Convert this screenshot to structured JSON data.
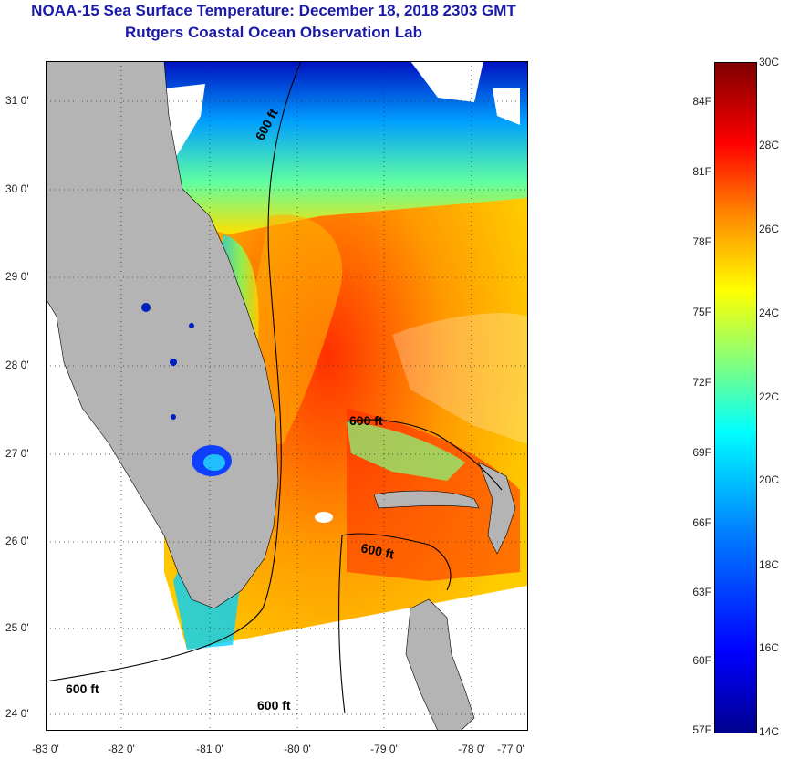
{
  "header": {
    "title": "NOAA-15 Sea Surface Temperature:  December 18, 2018 2303 GMT",
    "subtitle": "Rutgers Coastal Ocean Observation Lab"
  },
  "map": {
    "lat_labels": [
      "31 0'",
      "30 0'",
      "29 0'",
      "28 0'",
      "27 0'",
      "26 0'",
      "25 0'",
      "24 0'"
    ],
    "lon_labels": [
      "-83 0'",
      "-82 0'",
      "-81 0'",
      "-80 0'",
      "-79 0'",
      "-78 0'",
      "-77 0'"
    ],
    "isobath_labels": [
      "600 ft",
      "600 ft",
      "600 ft",
      "600 ft",
      "600 ft"
    ]
  },
  "colorbar": {
    "fahrenheit": [
      "84F",
      "81F",
      "78F",
      "75F",
      "72F",
      "69F",
      "66F",
      "63F",
      "60F",
      "57F"
    ],
    "celsius": [
      "30C",
      "28C",
      "26C",
      "24C",
      "22C",
      "20C",
      "18C",
      "16C",
      "14C"
    ]
  },
  "colors": {
    "title": "#1a1aa8",
    "land": "#b4b4b4"
  }
}
